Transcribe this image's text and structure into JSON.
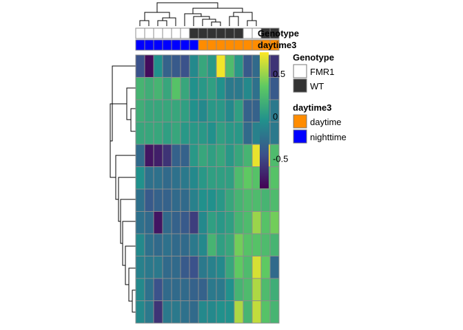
{
  "chart_data": {
    "type": "heatmap",
    "colorscale": [
      "#440154",
      "#3b528b",
      "#21918c",
      "#5ec962",
      "#fde725"
    ],
    "value_range": [
      -0.85,
      0.75
    ],
    "colorbar_ticks": [
      {
        "value": 0.5,
        "label": "0.5"
      },
      {
        "value": 0,
        "label": "0"
      },
      {
        "value": -0.5,
        "label": "-0.5"
      }
    ],
    "column_annotations": {
      "Genotype": [
        "FMR1",
        "FMR1",
        "FMR1",
        "FMR1",
        "FMR1",
        "FMR1",
        "WT",
        "WT",
        "WT",
        "WT",
        "WT",
        "WT",
        "FMR1",
        "FMR1",
        "WT",
        "WT"
      ],
      "daytime3": [
        "nighttime",
        "nighttime",
        "nighttime",
        "nighttime",
        "nighttime",
        "nighttime",
        "nighttime",
        "daytime",
        "daytime",
        "daytime",
        "daytime",
        "daytime",
        "daytime",
        "daytime",
        "daytime",
        "daytime"
      ]
    },
    "matrix": [
      [
        -0.45,
        -0.8,
        -0.05,
        -0.35,
        -0.4,
        -0.45,
        -0.1,
        0.1,
        0.0,
        0.72,
        0.25,
        0.0,
        -0.4,
        -0.3,
        -0.55,
        -0.6
      ],
      [
        0.2,
        0.15,
        0.2,
        0.1,
        0.3,
        0.1,
        -0.05,
        0.0,
        0.05,
        -0.05,
        -0.2,
        -0.2,
        -0.1,
        -0.25,
        -0.2,
        -0.4
      ],
      [
        0.15,
        0.1,
        0.1,
        0.1,
        0.1,
        0.05,
        -0.05,
        -0.1,
        0.0,
        0.0,
        -0.1,
        0.05,
        -0.35,
        -0.35,
        -0.15,
        -0.2
      ],
      [
        0.1,
        0.1,
        0.1,
        0.05,
        0.1,
        0.0,
        0.0,
        0.0,
        -0.05,
        0.05,
        0.0,
        0.0,
        -0.3,
        -0.15,
        -0.2,
        -0.2
      ],
      [
        -0.3,
        -0.75,
        -0.7,
        -0.6,
        -0.35,
        -0.35,
        0.0,
        0.1,
        0.05,
        0.1,
        0.0,
        0.1,
        0.2,
        0.7,
        0.75,
        0.25
      ],
      [
        -0.05,
        -0.25,
        -0.25,
        -0.3,
        -0.25,
        -0.2,
        -0.1,
        0.0,
        0.05,
        0.05,
        0.05,
        0.25,
        0.35,
        0.3,
        0.3,
        0.3
      ],
      [
        -0.25,
        -0.4,
        -0.35,
        -0.35,
        -0.3,
        -0.3,
        -0.15,
        -0.05,
        -0.05,
        0.0,
        0.1,
        0.2,
        0.25,
        0.25,
        0.2,
        0.25
      ],
      [
        -0.25,
        -0.3,
        -0.75,
        -0.3,
        -0.35,
        -0.4,
        -0.55,
        -0.1,
        0.05,
        0.0,
        0.05,
        0.2,
        0.25,
        0.5,
        0.3,
        0.4
      ],
      [
        -0.1,
        -0.25,
        -0.3,
        -0.25,
        -0.3,
        -0.3,
        -0.2,
        -0.1,
        0.2,
        0.05,
        0.1,
        0.4,
        0.3,
        0.3,
        0.25,
        0.2
      ],
      [
        -0.15,
        -0.2,
        -0.2,
        -0.3,
        -0.3,
        -0.4,
        -0.45,
        -0.2,
        -0.15,
        -0.1,
        0.1,
        0.35,
        0.25,
        0.65,
        0.35,
        -0.3
      ],
      [
        -0.1,
        -0.25,
        -0.45,
        -0.3,
        -0.3,
        -0.3,
        -0.35,
        -0.35,
        -0.2,
        -0.2,
        -0.05,
        0.2,
        0.25,
        0.55,
        0.25,
        0.15
      ],
      [
        -0.1,
        -0.2,
        -0.6,
        -0.2,
        -0.2,
        -0.25,
        -0.3,
        -0.1,
        -0.1,
        -0.05,
        -0.05,
        0.55,
        0.2,
        0.6,
        0.3,
        0.2
      ]
    ]
  },
  "annotation_colors": {
    "Genotype": {
      "FMR1": "#ffffff",
      "WT": "#333333"
    },
    "daytime3": {
      "daytime": "#ff8c00",
      "nighttime": "#0000ff"
    }
  },
  "labels": {
    "genotype_row": "Genotype",
    "daytime_row": "daytime3"
  },
  "legend": {
    "genotype_title": "Genotype",
    "genotype_items": [
      "FMR1",
      "WT"
    ],
    "daytime_title": "daytime3",
    "daytime_items": [
      "daytime",
      "nighttime"
    ]
  }
}
